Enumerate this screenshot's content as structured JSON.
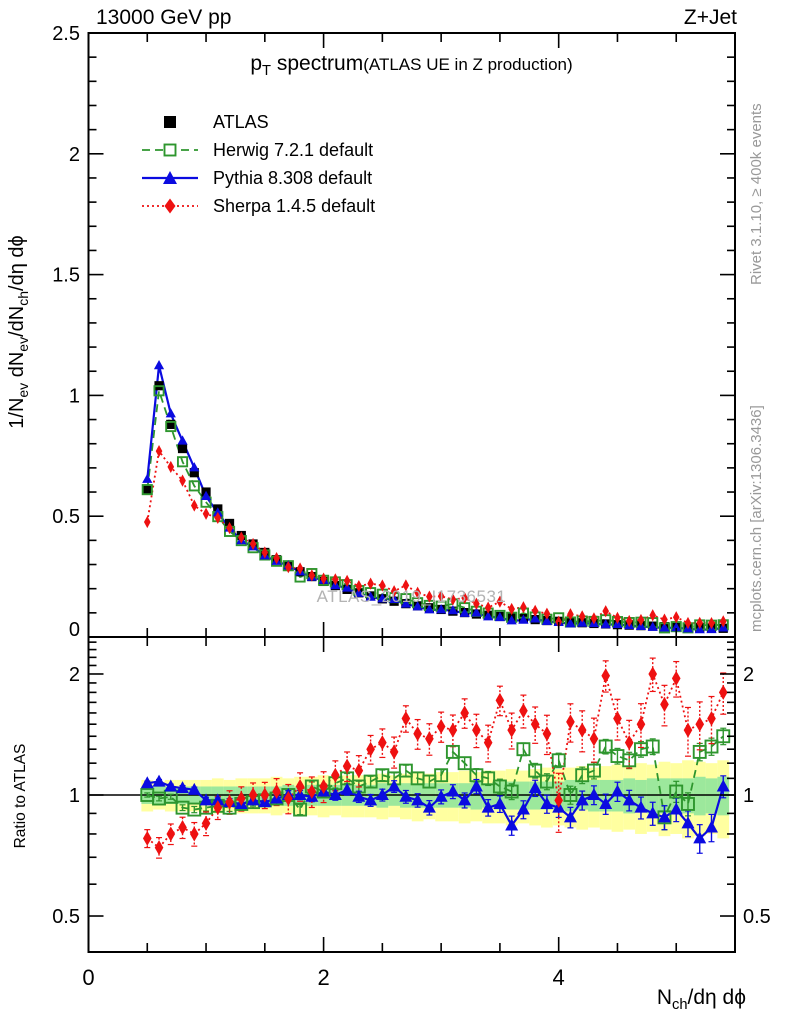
{
  "header": {
    "left": "13000 GeV pp",
    "right": "Z+Jet"
  },
  "title": {
    "main_segments": [
      {
        "t": "p"
      },
      {
        "t": "T",
        "sub": true
      },
      {
        "t": " spectrum"
      }
    ],
    "paren": "(ATLAS UE in Z production)"
  },
  "legend": [
    {
      "id": "atlas",
      "label": "ATLAS"
    },
    {
      "id": "herwig",
      "label": "Herwig 7.2.1 default"
    },
    {
      "id": "pythia",
      "label": "Pythia 8.308 default"
    },
    {
      "id": "sherpa",
      "label": "Sherpa 1.4.5 default"
    }
  ],
  "side_notes": {
    "rivet": "Rivet 3.1.10, ≥ 400k events",
    "mcplots": "mcplots.cern.ch [arXiv:1306.3436]"
  },
  "watermark": "ATLAS_2019_I1736531",
  "axes": {
    "main_ylabel_segments": [
      {
        "t": "1/N"
      },
      {
        "t": "ev",
        "sub": true
      },
      {
        "t": " dN"
      },
      {
        "t": "ev",
        "sub": true
      },
      {
        "t": "/dN"
      },
      {
        "t": "ch",
        "sub": true
      },
      {
        "t": "/dη dϕ"
      }
    ],
    "ratio_ylabel": "Ratio to ATLAS",
    "xlabel_segments": [
      {
        "t": "N"
      },
      {
        "t": "ch",
        "sub": true
      },
      {
        "t": "/dη dϕ"
      }
    ],
    "main_yticks": {
      "values": [
        0,
        0.5,
        1,
        1.5,
        2,
        2.5
      ],
      "labels": [
        "0",
        "0.5",
        "1",
        "1.5",
        "2",
        "2.5"
      ]
    },
    "xticks": {
      "values": [
        0,
        2,
        4
      ],
      "labels": [
        "0",
        "2",
        "4"
      ],
      "minor_step": 0.5
    },
    "ratio_yticks": {
      "values": [
        0.5,
        1,
        2
      ],
      "labels": [
        "0.5",
        "1",
        "2"
      ]
    }
  },
  "colors": {
    "atlas": "#000000",
    "herwig": "#2e962e",
    "pythia": "#0b0be0",
    "sherpa": "#ee1111",
    "band_green": "#9ce89c",
    "band_yellow": "#ffffa0",
    "gray_text": "#999999",
    "watermark": "#b3b3b3",
    "frame": "#000000"
  },
  "chart_data": {
    "type": "line",
    "title": "pT spectrum (ATLAS UE in Z production)",
    "xlabel": "Nch/deta dphi",
    "ylabel_top": "1/Nev dNev/dNch/deta dphi",
    "ylabel_bottom": "Ratio to ATLAS",
    "main_axis": {
      "xlim": [
        0,
        5.5
      ],
      "ylim": [
        0,
        2.5
      ],
      "scale": "linear"
    },
    "ratio_axis": {
      "scale": "log",
      "ylim": [
        0.407,
        2.47
      ],
      "reference_line": 1.0
    },
    "legend_position": "top-left-inside",
    "grid": false,
    "note": "MC spectrum values in top panel = ATLAS values × ratio_to_atlas; ratio panel shows ratio_to_atlas on log scale; green/yellow stepped bands are data uncertainty around 1.",
    "x": [
      0.5,
      0.6,
      0.7,
      0.8,
      0.9,
      1.0,
      1.1,
      1.2,
      1.3,
      1.4,
      1.5,
      1.6,
      1.7,
      1.8,
      1.9,
      2.0,
      2.1,
      2.2,
      2.3,
      2.4,
      2.5,
      2.6,
      2.7,
      2.8,
      2.9,
      3.0,
      3.1,
      3.2,
      3.3,
      3.4,
      3.5,
      3.6,
      3.7,
      3.8,
      3.9,
      4.0,
      4.1,
      4.2,
      4.3,
      4.4,
      4.5,
      4.6,
      4.7,
      4.8,
      4.9,
      5.0,
      5.1,
      5.2,
      5.3,
      5.4
    ],
    "series": [
      {
        "name": "ATLAS",
        "marker": "square-filled",
        "line": "none",
        "values": [
          0.61,
          1.04,
          0.88,
          0.78,
          0.68,
          0.6,
          0.53,
          0.47,
          0.42,
          0.385,
          0.35,
          0.32,
          0.295,
          0.27,
          0.25,
          0.23,
          0.213,
          0.197,
          0.183,
          0.17,
          0.158,
          0.148,
          0.138,
          0.129,
          0.121,
          0.114,
          0.107,
          0.101,
          0.095,
          0.09,
          0.085,
          0.08,
          0.076,
          0.072,
          0.068,
          0.065,
          0.062,
          0.059,
          0.056,
          0.054,
          0.051,
          0.049,
          0.047,
          0.045,
          0.043,
          0.042,
          0.04,
          0.039,
          0.037,
          0.036
        ]
      },
      {
        "name": "Herwig 7.2.1 default",
        "marker": "square-open",
        "line": "dashed",
        "ratio_to_atlas": [
          1.0,
          0.98,
          0.99,
          0.93,
          0.92,
          0.93,
          0.94,
          0.93,
          0.95,
          0.96,
          0.97,
          0.98,
          1.0,
          0.92,
          1.05,
          1.02,
          1.07,
          1.1,
          1.05,
          1.08,
          1.12,
          1.1,
          1.15,
          1.1,
          1.08,
          1.12,
          1.28,
          1.2,
          1.12,
          1.1,
          1.05,
          1.02,
          1.3,
          1.15,
          1.08,
          1.22,
          1.0,
          1.12,
          1.15,
          1.32,
          1.25,
          1.22,
          1.3,
          1.32,
          0.88,
          1.02,
          0.95,
          1.28,
          1.32,
          1.4
        ]
      },
      {
        "name": "Pythia 8.308 default",
        "marker": "triangle-filled",
        "line": "solid",
        "ratio_to_atlas": [
          1.07,
          1.08,
          1.05,
          1.04,
          1.03,
          0.97,
          0.97,
          0.96,
          0.95,
          0.97,
          0.96,
          0.98,
          1.0,
          1.0,
          0.99,
          1.02,
          1.0,
          1.03,
          0.99,
          0.97,
          1.0,
          1.05,
          0.99,
          0.97,
          0.93,
          0.99,
          1.02,
          0.97,
          1.05,
          0.93,
          0.95,
          0.84,
          0.92,
          1.04,
          0.95,
          0.93,
          0.88,
          0.97,
          1.0,
          0.95,
          1.02,
          0.97,
          0.93,
          0.9,
          0.88,
          0.92,
          0.85,
          0.78,
          0.83,
          1.05
        ]
      },
      {
        "name": "Sherpa 1.4.5 default",
        "marker": "diamond-filled",
        "line": "dotted",
        "ratio_to_atlas": [
          0.78,
          0.74,
          0.8,
          0.83,
          0.8,
          0.85,
          0.93,
          0.96,
          0.98,
          1.0,
          1.0,
          1.02,
          0.98,
          1.05,
          1.02,
          1.05,
          1.12,
          1.18,
          1.15,
          1.3,
          1.35,
          1.28,
          1.55,
          1.42,
          1.38,
          1.48,
          1.45,
          1.6,
          1.45,
          1.35,
          1.72,
          1.45,
          1.62,
          1.5,
          1.42,
          0.97,
          1.52,
          1.45,
          1.38,
          1.98,
          1.55,
          1.35,
          1.5,
          2.0,
          1.68,
          1.95,
          1.45,
          1.5,
          1.55,
          1.8
        ]
      }
    ],
    "uncertainty_bands": {
      "green_halfwidth": [
        0.05,
        0.05,
        0.05,
        0.05,
        0.05,
        0.05,
        0.05,
        0.05,
        0.05,
        0.05,
        0.05,
        0.05,
        0.06,
        0.05,
        0.06,
        0.06,
        0.06,
        0.06,
        0.06,
        0.06,
        0.07,
        0.06,
        0.07,
        0.07,
        0.07,
        0.07,
        0.07,
        0.07,
        0.08,
        0.07,
        0.08,
        0.08,
        0.08,
        0.08,
        0.08,
        0.08,
        0.09,
        0.08,
        0.09,
        0.09,
        0.09,
        0.1,
        0.09,
        0.1,
        0.1,
        0.1,
        0.1,
        0.11,
        0.1,
        0.11
      ],
      "yellow_halfwidth": [
        0.09,
        0.08,
        0.09,
        0.09,
        0.09,
        0.09,
        0.1,
        0.09,
        0.1,
        0.1,
        0.1,
        0.11,
        0.1,
        0.11,
        0.11,
        0.12,
        0.11,
        0.12,
        0.12,
        0.12,
        0.13,
        0.12,
        0.13,
        0.14,
        0.13,
        0.14,
        0.14,
        0.15,
        0.14,
        0.15,
        0.15,
        0.16,
        0.15,
        0.16,
        0.17,
        0.16,
        0.17,
        0.18,
        0.17,
        0.18,
        0.19,
        0.18,
        0.2,
        0.19,
        0.21,
        0.2,
        0.22,
        0.21,
        0.2,
        0.22
      ]
    }
  }
}
